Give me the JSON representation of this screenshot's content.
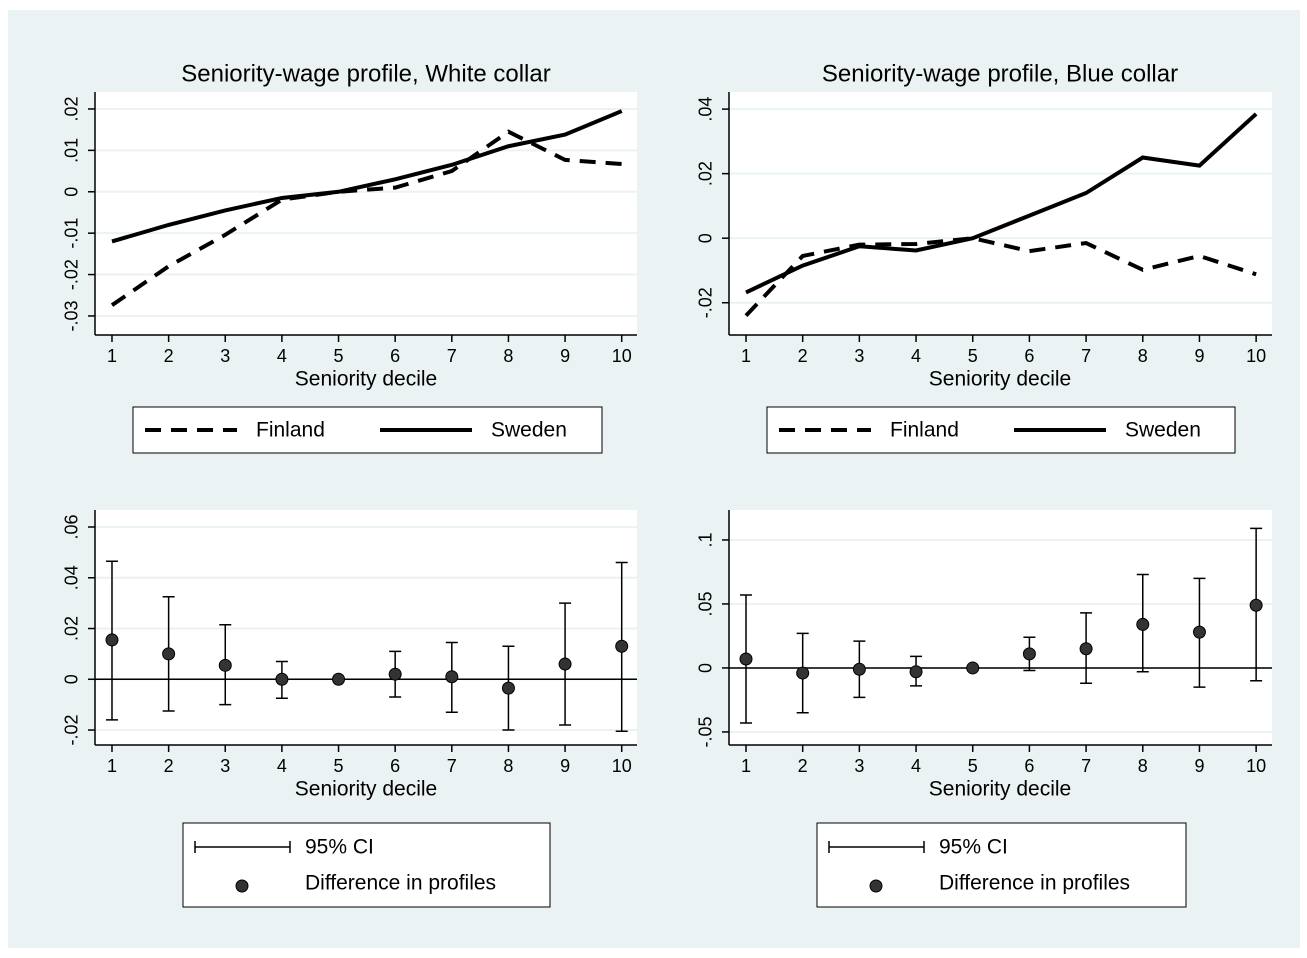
{
  "chart_data": [
    {
      "type": "line",
      "title": "Seniority-wage profile, White collar",
      "x_label": "Seniority decile",
      "x": [
        1,
        2,
        3,
        4,
        5,
        6,
        7,
        8,
        9,
        10
      ],
      "xlim": [
        0.7,
        10.27
      ],
      "xticks": [
        1,
        2,
        3,
        4,
        5,
        6,
        7,
        8,
        9,
        10
      ],
      "ylim": [
        -0.0346,
        0.0241
      ],
      "yticks": [
        {
          "value": -0.03,
          "label": "-.03"
        },
        {
          "value": -0.02,
          "label": "-.02"
        },
        {
          "value": -0.01,
          "label": "-.01"
        },
        0,
        {
          "value": 0.01,
          "label": ".01"
        },
        {
          "value": 0.02,
          "label": ".02"
        }
      ],
      "grid": true,
      "legend": "bottom",
      "series": [
        {
          "name": "Finland",
          "color": "#000000",
          "linestyle": "dashed",
          "values": [
            -0.0274,
            -0.018,
            -0.0104,
            -0.0019,
            0,
            0.001,
            0.005,
            0.0145,
            0.0077,
            0.0067
          ]
        },
        {
          "name": "Sweden",
          "color": "#000000",
          "linestyle": "solid",
          "values": [
            -0.012,
            -0.008,
            -0.0045,
            -0.0015,
            0,
            0.003,
            0.0065,
            0.011,
            0.0138,
            0.0195
          ]
        }
      ]
    },
    {
      "type": "line",
      "title": "Seniority-wage profile, Blue collar",
      "x_label": "Seniority decile",
      "x": [
        1,
        2,
        3,
        4,
        5,
        6,
        7,
        8,
        9,
        10
      ],
      "xlim": [
        0.7,
        10.28
      ],
      "xticks": [
        1,
        2,
        3,
        4,
        5,
        6,
        7,
        8,
        9,
        10
      ],
      "ylim": [
        -0.03,
        0.0453
      ],
      "yticks": [
        {
          "value": -0.02,
          "label": "-.02"
        },
        0,
        {
          "value": 0.02,
          "label": ".02"
        },
        {
          "value": 0.04,
          "label": ".04"
        }
      ],
      "grid": true,
      "legend": "bottom",
      "series": [
        {
          "name": "Finland",
          "color": "#000000",
          "linestyle": "dashed",
          "values": [
            -0.024,
            -0.0055,
            -0.002,
            -0.0018,
            0,
            -0.004,
            -0.0015,
            -0.0098,
            -0.0055,
            -0.0112
          ]
        },
        {
          "name": "Sweden",
          "color": "#000000",
          "linestyle": "solid",
          "values": [
            -0.0168,
            -0.0085,
            -0.0025,
            -0.0038,
            0,
            0.007,
            0.014,
            0.025,
            0.0225,
            0.0385
          ]
        }
      ]
    },
    {
      "type": "errorbar",
      "x_label": "Seniority decile",
      "x": [
        1,
        2,
        3,
        4,
        5,
        6,
        7,
        8,
        9,
        10
      ],
      "xlim": [
        0.7,
        10.27
      ],
      "xticks": [
        1,
        2,
        3,
        4,
        5,
        6,
        7,
        8,
        9,
        10
      ],
      "ylim": [
        -0.0259,
        0.0667
      ],
      "yticks": [
        {
          "value": -0.02,
          "label": "-.02"
        },
        0,
        {
          "value": 0.02,
          "label": ".02"
        },
        {
          "value": 0.04,
          "label": ".04"
        },
        {
          "value": 0.06,
          "label": ".06"
        }
      ],
      "grid": true,
      "legend": "bottom",
      "yline": 0,
      "series": [
        {
          "name": "95% CI",
          "color": "#000000",
          "lower": [
            -0.016,
            -0.0125,
            -0.01,
            -0.0075,
            null,
            -0.007,
            -0.013,
            -0.02,
            -0.018,
            -0.0205
          ],
          "upper": [
            0.0465,
            0.0325,
            0.0215,
            0.007,
            null,
            0.011,
            0.0145,
            0.013,
            0.03,
            0.046
          ]
        },
        {
          "name": "Difference in profiles",
          "color": "#333333",
          "values": [
            0.0155,
            0.01,
            0.0055,
            0,
            0,
            0.002,
            0.001,
            -0.0035,
            0.006,
            0.013
          ]
        }
      ]
    },
    {
      "type": "errorbar",
      "x_label": "Seniority decile",
      "x": [
        1,
        2,
        3,
        4,
        5,
        6,
        7,
        8,
        9,
        10
      ],
      "xlim": [
        0.7,
        10.28
      ],
      "xticks": [
        1,
        2,
        3,
        4,
        5,
        6,
        7,
        8,
        9,
        10
      ],
      "ylim": [
        -0.0602,
        0.1234
      ],
      "yticks": [
        {
          "value": -0.05,
          "label": "-.05"
        },
        0,
        {
          "value": 0.05,
          "label": ".05"
        },
        {
          "value": 0.1,
          "label": ".1"
        }
      ],
      "grid": true,
      "legend": "bottom",
      "yline": 0,
      "series": [
        {
          "name": "95% CI",
          "color": "#000000",
          "lower": [
            -0.043,
            -0.035,
            -0.023,
            -0.014,
            null,
            -0.002,
            -0.012,
            -0.003,
            -0.015,
            -0.01
          ],
          "upper": [
            0.057,
            0.027,
            0.021,
            0.009,
            null,
            0.024,
            0.043,
            0.073,
            0.07,
            0.109
          ]
        },
        {
          "name": "Difference in profiles",
          "color": "#333333",
          "values": [
            0.007,
            -0.004,
            -0.001,
            -0.003,
            0,
            0.011,
            0.015,
            0.034,
            0.028,
            0.049
          ]
        }
      ]
    }
  ]
}
